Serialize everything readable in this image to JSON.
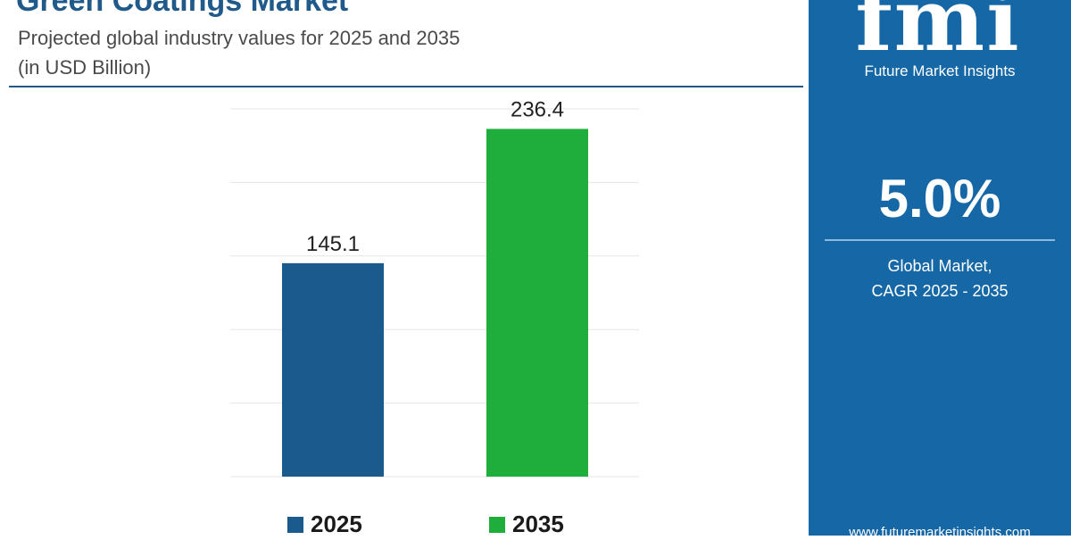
{
  "header": {
    "title": "Green Coatings Market",
    "subtitle": "Projected global industry values for 2025 and 2035",
    "unit": "(in USD Billion)"
  },
  "chart_data": {
    "type": "bar",
    "categories": [
      "2025",
      "2035"
    ],
    "values": [
      145.1,
      236.4
    ],
    "data_labels": [
      "145.1",
      "236.4"
    ],
    "colors": [
      "#1a5a8c",
      "#1fad3c"
    ],
    "ylim": [
      0,
      250
    ],
    "grid": true,
    "legend": {
      "position": "bottom",
      "entries": [
        {
          "label": "2025",
          "color": "#1a5a8c"
        },
        {
          "label": "2035",
          "color": "#1fad3c"
        }
      ]
    }
  },
  "panel": {
    "logo_letters": "fmi",
    "logo_name": "Future Market Insights",
    "cagr_value": "5.0%",
    "cagr_label_line1": "Global Market,",
    "cagr_label_line2": "CAGR 2025 - 2035",
    "website": "www.futuremarketinsights.com",
    "background": "#1667a6"
  }
}
